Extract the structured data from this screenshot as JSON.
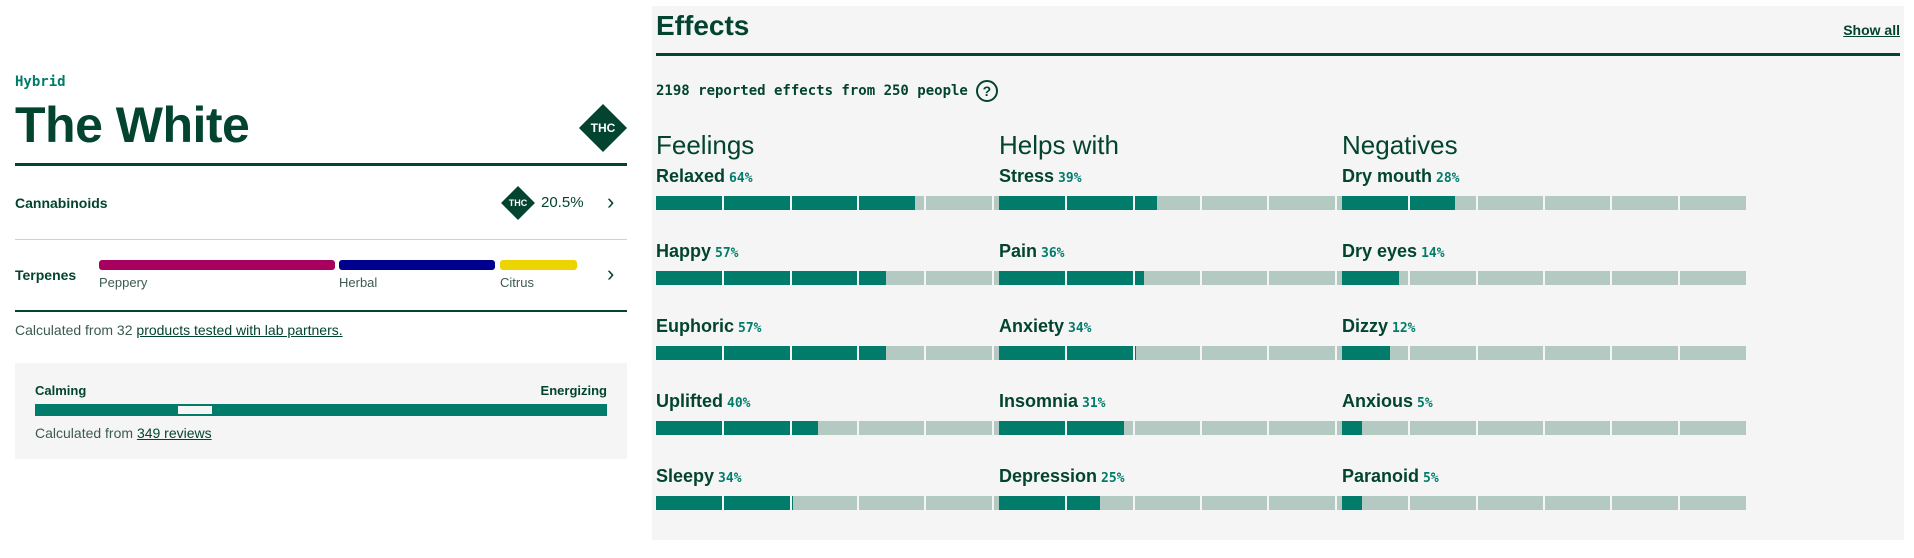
{
  "strain": {
    "type": "Hybrid",
    "name": "The White",
    "thc_badge": "THC"
  },
  "cannabinoids": {
    "label": "Cannabinoids",
    "thc_badge": "THC",
    "thc_value": "20.5%"
  },
  "terpenes": {
    "label": "Terpenes",
    "items": [
      {
        "name": "Peppery",
        "color": "#a7005f"
      },
      {
        "name": "Herbal",
        "color": "#00008e"
      },
      {
        "name": "Citrus",
        "color": "#ecd400"
      }
    ]
  },
  "lab": {
    "prefix": "Calculated from 32 ",
    "link": "products tested with lab partners."
  },
  "energy_scale": {
    "left_label": "Calming",
    "right_label": "Energizing",
    "position": 0.28,
    "reviews_prefix": "Calculated from ",
    "reviews_link": "349 reviews"
  },
  "effects": {
    "title": "Effects",
    "show_all": "Show all",
    "reported": "2198 reported effects from 250 people",
    "help_glyph": "?",
    "columns": [
      {
        "title": "Feelings",
        "items": [
          {
            "name": "Relaxed",
            "pct_label": "64%",
            "value": 64
          },
          {
            "name": "Happy",
            "pct_label": "57%",
            "value": 57
          },
          {
            "name": "Euphoric",
            "pct_label": "57%",
            "value": 57
          },
          {
            "name": "Uplifted",
            "pct_label": "40%",
            "value": 40
          },
          {
            "name": "Sleepy",
            "pct_label": "34%",
            "value": 34
          }
        ]
      },
      {
        "title": "Helps with",
        "items": [
          {
            "name": "Stress",
            "pct_label": "39%",
            "value": 39
          },
          {
            "name": "Pain",
            "pct_label": "36%",
            "value": 36
          },
          {
            "name": "Anxiety",
            "pct_label": "34%",
            "value": 34
          },
          {
            "name": "Insomnia",
            "pct_label": "31%",
            "value": 31
          },
          {
            "name": "Depression",
            "pct_label": "25%",
            "value": 25
          }
        ]
      },
      {
        "title": "Negatives",
        "items": [
          {
            "name": "Dry mouth",
            "pct_label": "28%",
            "value": 28
          },
          {
            "name": "Dry eyes",
            "pct_label": "14%",
            "value": 14
          },
          {
            "name": "Dizzy",
            "pct_label": "12%",
            "value": 12
          },
          {
            "name": "Anxious",
            "pct_label": "5%",
            "value": 5
          },
          {
            "name": "Paranoid",
            "pct_label": "5%",
            "value": 5
          }
        ]
      }
    ]
  }
}
